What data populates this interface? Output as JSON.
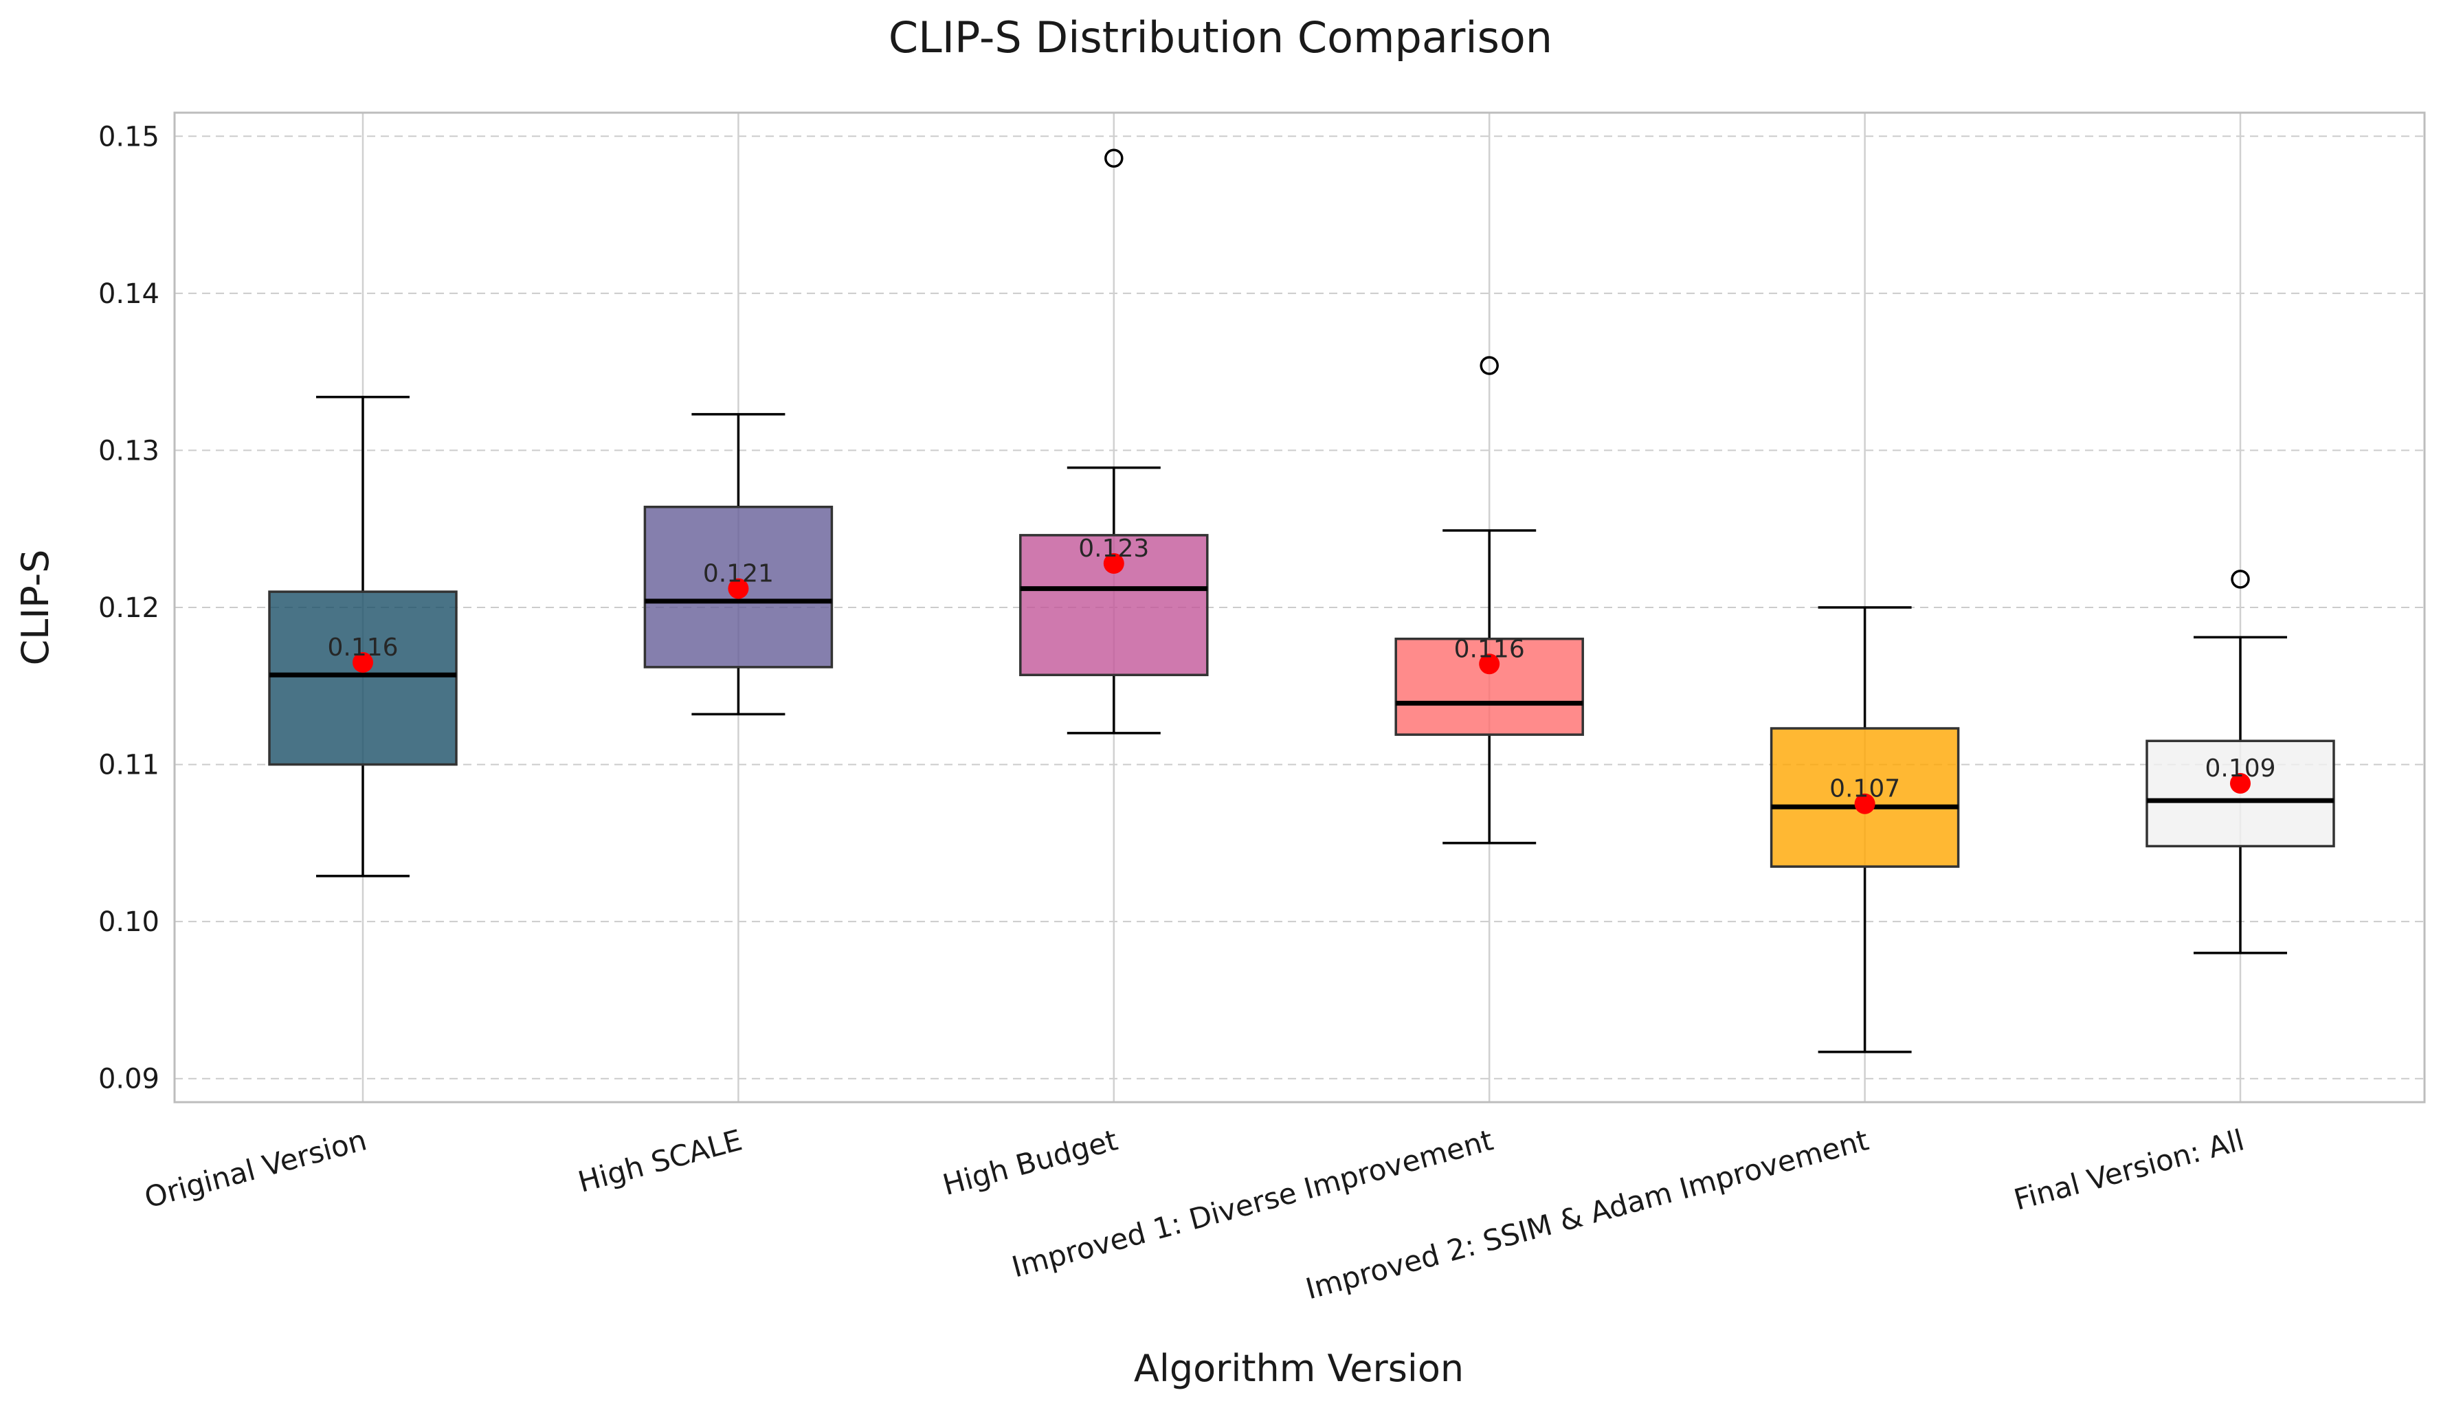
{
  "chart_data": {
    "type": "box",
    "title": "CLIP-S Distribution Comparison",
    "xlabel": "Algorithm Version",
    "ylabel": "CLIP-S",
    "ylim": [
      0.0885,
      0.1515
    ],
    "yticks": [
      "0.09",
      "0.10",
      "0.11",
      "0.12",
      "0.13",
      "0.14",
      "0.15"
    ],
    "ytick_values": [
      0.09,
      0.1,
      0.11,
      0.12,
      0.13,
      0.14,
      0.15
    ],
    "grid": true,
    "mean_marker_color": "#ff0000",
    "median_color": "#000000",
    "series": [
      {
        "category": "Original Version",
        "color": "#1b5068",
        "whisker_low": 0.1029,
        "q1": 0.11,
        "median": 0.1157,
        "q3": 0.121,
        "whisker_high": 0.1334,
        "mean": 0.1165,
        "mean_label": "0.116",
        "outliers": []
      },
      {
        "category": "High SCALE",
        "color": "#665f99",
        "whisker_low": 0.1132,
        "q1": 0.1162,
        "median": 0.1204,
        "q3": 0.1264,
        "whisker_high": 0.1323,
        "mean": 0.1212,
        "mean_label": "0.121",
        "outliers": []
      },
      {
        "category": "High Budget",
        "color": "#c3579a",
        "whisker_low": 0.112,
        "q1": 0.1157,
        "median": 0.1212,
        "q3": 0.1246,
        "whisker_high": 0.1289,
        "mean": 0.1228,
        "mean_label": "0.123",
        "outliers": [
          0.1486
        ]
      },
      {
        "category": "Improved 1: Diverse Improvement",
        "color": "#ff6e6e",
        "whisker_low": 0.105,
        "q1": 0.1119,
        "median": 0.1139,
        "q3": 0.118,
        "whisker_high": 0.1249,
        "mean": 0.1164,
        "mean_label": "0.116",
        "outliers": [
          0.1354
        ]
      },
      {
        "category": "Improved 2: SSIM & Adam Improvement",
        "color": "#ffa600",
        "whisker_low": 0.0917,
        "q1": 0.1035,
        "median": 0.1073,
        "q3": 0.1123,
        "whisker_high": 0.12,
        "mean": 0.1075,
        "mean_label": "0.107",
        "outliers": []
      },
      {
        "category": "Final Version: All",
        "color": "#f0f0f0",
        "whisker_low": 0.098,
        "q1": 0.1048,
        "median": 0.1077,
        "q3": 0.1115,
        "whisker_high": 0.1181,
        "mean": 0.1088,
        "mean_label": "0.109",
        "outliers": [
          0.1218
        ]
      }
    ]
  }
}
